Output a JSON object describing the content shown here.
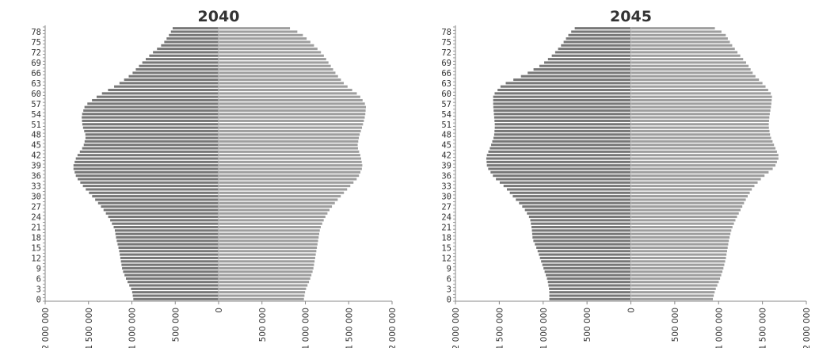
{
  "chart_data": [
    {
      "type": "bar",
      "orientation": "horizontal",
      "subtype": "population-pyramid",
      "title": "2040",
      "age_labels": [
        "0",
        "3",
        "6",
        "9",
        "12",
        "15",
        "18",
        "21",
        "24",
        "27",
        "30",
        "33",
        "36",
        "39",
        "42",
        "45",
        "48",
        "51",
        "54",
        "57",
        "60",
        "63",
        "66",
        "69",
        "72",
        "75",
        "78"
      ],
      "x_tick_labels": [
        "2 000 000",
        "1 500 000",
        "1 000 000",
        "500 000",
        "0",
        "500 000",
        "1 000 000",
        "1 500 000",
        "2 000 000"
      ],
      "xlim": [
        -2000000,
        2000000
      ],
      "age_range": [
        0,
        80
      ],
      "series": [
        {
          "ages": [
            0,
            3,
            6,
            9,
            12,
            15,
            18,
            21,
            24,
            27,
            30,
            33,
            36,
            39,
            42,
            45,
            48,
            51,
            54,
            57,
            60,
            63,
            66,
            69,
            72,
            75,
            78,
            80
          ],
          "values": [
            980000,
            1000000,
            1060000,
            1110000,
            1130000,
            1150000,
            1180000,
            1200000,
            1260000,
            1340000,
            1440000,
            1550000,
            1640000,
            1680000,
            1640000,
            1560000,
            1530000,
            1570000,
            1580000,
            1540000,
            1380000,
            1170000,
            1010000,
            900000,
            780000,
            640000,
            560000,
            520000
          ]
        },
        {
          "ages": [
            0,
            3,
            6,
            9,
            12,
            15,
            18,
            21,
            24,
            27,
            30,
            33,
            36,
            39,
            42,
            45,
            48,
            51,
            54,
            57,
            60,
            63,
            66,
            69,
            72,
            75,
            78,
            80
          ],
          "values": [
            980000,
            1000000,
            1050000,
            1090000,
            1110000,
            1130000,
            1150000,
            1170000,
            1220000,
            1290000,
            1390000,
            1500000,
            1610000,
            1660000,
            1640000,
            1600000,
            1620000,
            1660000,
            1690000,
            1700000,
            1620000,
            1460000,
            1360000,
            1280000,
            1200000,
            1080000,
            950000,
            780000
          ]
        }
      ]
    },
    {
      "type": "bar",
      "orientation": "horizontal",
      "subtype": "population-pyramid",
      "title": "2045",
      "age_labels": [
        "0",
        "3",
        "6",
        "9",
        "12",
        "15",
        "18",
        "21",
        "24",
        "27",
        "30",
        "33",
        "36",
        "39",
        "42",
        "45",
        "48",
        "51",
        "54",
        "57",
        "60",
        "63",
        "66",
        "69",
        "72",
        "75",
        "78"
      ],
      "x_tick_labels": [
        "2 000 000",
        "1 500 000",
        "1 000 000",
        "500 000",
        "0",
        "500 000",
        "1 000 000",
        "1 500 000",
        "2 000 000"
      ],
      "xlim": [
        -2000000,
        2000000
      ],
      "age_range": [
        0,
        80
      ],
      "series": [
        {
          "ages": [
            0,
            3,
            6,
            9,
            12,
            15,
            18,
            21,
            24,
            27,
            30,
            33,
            36,
            39,
            42,
            45,
            48,
            51,
            54,
            57,
            60,
            63,
            66,
            69,
            72,
            75,
            78,
            80
          ],
          "values": [
            930000,
            930000,
            950000,
            990000,
            1030000,
            1070000,
            1120000,
            1130000,
            1150000,
            1220000,
            1330000,
            1430000,
            1560000,
            1640000,
            1650000,
            1600000,
            1560000,
            1550000,
            1560000,
            1570000,
            1570000,
            1470000,
            1210000,
            1010000,
            880000,
            780000,
            700000,
            620000
          ]
        },
        {
          "ages": [
            0,
            3,
            6,
            9,
            12,
            15,
            18,
            21,
            24,
            27,
            30,
            33,
            36,
            39,
            42,
            45,
            48,
            51,
            54,
            57,
            60,
            63,
            66,
            69,
            72,
            75,
            78,
            80
          ],
          "values": [
            930000,
            960000,
            1010000,
            1050000,
            1080000,
            1100000,
            1120000,
            1150000,
            1200000,
            1260000,
            1320000,
            1390000,
            1500000,
            1640000,
            1690000,
            1640000,
            1590000,
            1570000,
            1580000,
            1600000,
            1610000,
            1520000,
            1400000,
            1330000,
            1230000,
            1140000,
            1070000,
            920000
          ]
        }
      ]
    }
  ]
}
